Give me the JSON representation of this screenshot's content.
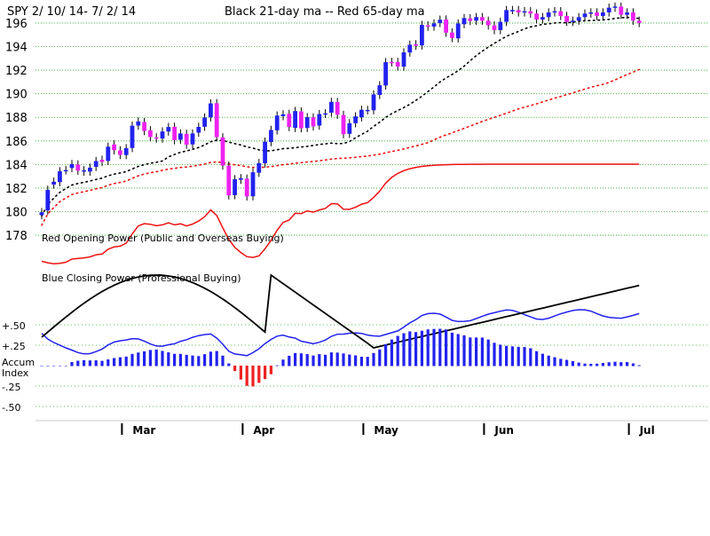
{
  "chart_data": {
    "type": "candlestick",
    "ticker": "SPY",
    "title": "SPY   2/ 10/ 14-  7/ 2/ 14",
    "subtitle": "Black 21-day ma --  Red 65-day ma",
    "price_axis": {
      "ticks": [
        178,
        180,
        182,
        184,
        186,
        188,
        190,
        192,
        194,
        196
      ],
      "ylim": [
        176.5,
        197.2
      ]
    },
    "x_axis": {
      "months": [
        "Mar",
        "Apr",
        "May",
        "Jun",
        "Jul"
      ],
      "month_start_index": [
        13,
        33,
        53,
        73,
        97
      ],
      "n_days": 100
    },
    "candles": {
      "close": [
        179.95,
        181.85,
        182.54,
        183.43,
        183.53,
        184.04,
        183.48,
        183.51,
        183.73,
        184.29,
        184.22,
        185.51,
        185.21,
        184.81,
        185.38,
        187.29,
        187.65,
        186.84,
        186.33,
        186.2,
        186.8,
        187.18,
        186.06,
        186.63,
        185.68,
        186.63,
        187.19,
        187.98,
        189.18,
        186.32,
        183.91,
        181.38,
        182.75,
        182.84,
        181.29,
        183.34,
        184.12,
        185.94,
        186.93,
        188.15,
        188.26,
        187.18,
        188.53,
        187.08,
        188.01,
        187.23,
        188.28,
        188.34,
        189.31,
        188.22,
        186.57,
        187.5,
        188.08,
        188.64,
        188.63,
        189.94,
        190.72,
        192.68,
        192.67,
        192.31,
        193.51,
        194.16,
        194.07,
        195.84,
        195.68,
        195.97,
        196.28,
        195.18,
        194.73,
        195.96,
        196.42,
        196.17,
        196.5,
        196.2,
        195.8,
        195.4,
        196.1,
        197.1,
        197.1,
        196.9,
        197.0,
        196.8,
        196.3,
        196.5,
        196.9,
        197.0,
        196.6,
        196.1,
        196.2,
        196.5,
        196.8,
        196.9,
        196.6,
        196.9,
        197.3,
        197.4,
        196.7,
        196.9,
        196.2,
        196.0
      ],
      "open": [
        179.7,
        180.1,
        182.3,
        182.5,
        183.5,
        183.7,
        184.0,
        183.4,
        183.4,
        183.8,
        184.4,
        184.3,
        185.7,
        185.2,
        184.8,
        185.4,
        187.3,
        187.6,
        186.9,
        186.3,
        186.2,
        186.8,
        187.2,
        186.1,
        186.6,
        185.7,
        186.7,
        187.2,
        188.0,
        189.2,
        186.3,
        183.9,
        181.4,
        182.7,
        182.8,
        181.3,
        183.3,
        184.1,
        185.9,
        186.9,
        188.1,
        188.3,
        187.1,
        188.5,
        187.1,
        188.0,
        187.3,
        188.3,
        188.4,
        189.3,
        188.2,
        186.6,
        187.5,
        188.0,
        188.6,
        188.6,
        189.9,
        190.7,
        192.7,
        192.7,
        192.3,
        193.5,
        194.2,
        194.1,
        195.8,
        195.7,
        196.0,
        196.3,
        195.2,
        194.7,
        195.9,
        196.4,
        196.2,
        196.5,
        196.2,
        195.8,
        195.4,
        196.1,
        197.1,
        197.1,
        196.9,
        197.0,
        196.8,
        196.3,
        196.5,
        196.9,
        197.0,
        196.6,
        196.1,
        196.2,
        196.5,
        196.8,
        196.9,
        196.6,
        196.9,
        197.3,
        197.4,
        196.7,
        196.9,
        196.2
      ]
    },
    "ma_21": {
      "name": "Black 21-day ma",
      "color": "#000000"
    },
    "ma_65": {
      "name": "Red 65-day ma",
      "color": "#ee1111"
    },
    "panels": {
      "red_opening_power_label": "Red Opening Power (Public and Overseas Buying)",
      "blue_closing_power_label": "Blue Closing Power (Professional Buying)",
      "accum_label_line1": "Accum",
      "accum_label_line2": "Index",
      "accum_ticks": [
        {
          "label": "+.50",
          "value": 0.5
        },
        {
          "label": "+.25",
          "value": 0.25
        },
        {
          "label": "-.25",
          "value": -0.25
        },
        {
          "label": "-.50",
          "value": -0.5
        }
      ]
    },
    "colors": {
      "up_candle": "#2222ee",
      "down_candle": "#ee22ee",
      "grid": "#22aa22",
      "accum_pos": "#2222ee",
      "accum_neg": "#ee2222"
    }
  }
}
